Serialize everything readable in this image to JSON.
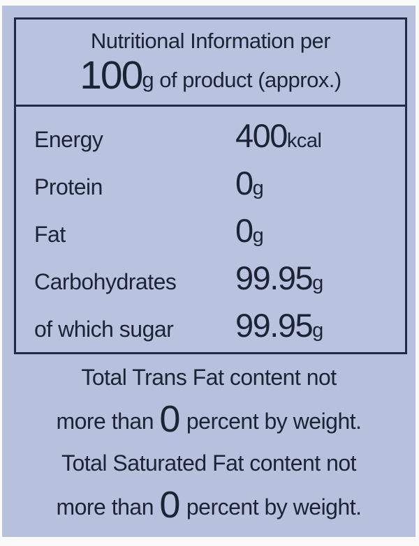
{
  "colors": {
    "panel_background": "#b7c1de",
    "ink": "#1c2334",
    "border": "#202b46",
    "outer_background": "#fafafa"
  },
  "header": {
    "line1": "Nutritional Information per",
    "amount": "100",
    "amount_unit": "g",
    "line2_rest": "of product (approx.)"
  },
  "rows": [
    {
      "label": "Energy",
      "value": "400",
      "unit": "kcal"
    },
    {
      "label": "Protein",
      "value": "0",
      "unit": "g"
    },
    {
      "label": "Fat",
      "value": "0",
      "unit": "g"
    },
    {
      "label": "Carbohydrates",
      "value": "99.95",
      "unit": "g"
    },
    {
      "label": "of which sugar",
      "value": "99.95",
      "unit": "g"
    }
  ],
  "footnotes": [
    {
      "line1": "Total Trans Fat content not",
      "line2_prefix": "more than ",
      "zero": "0",
      "line2_suffix": " percent by weight."
    },
    {
      "line1": "Total Saturated Fat content not",
      "line2_prefix": "more than ",
      "zero": "0",
      "line2_suffix": " percent by weight."
    }
  ]
}
